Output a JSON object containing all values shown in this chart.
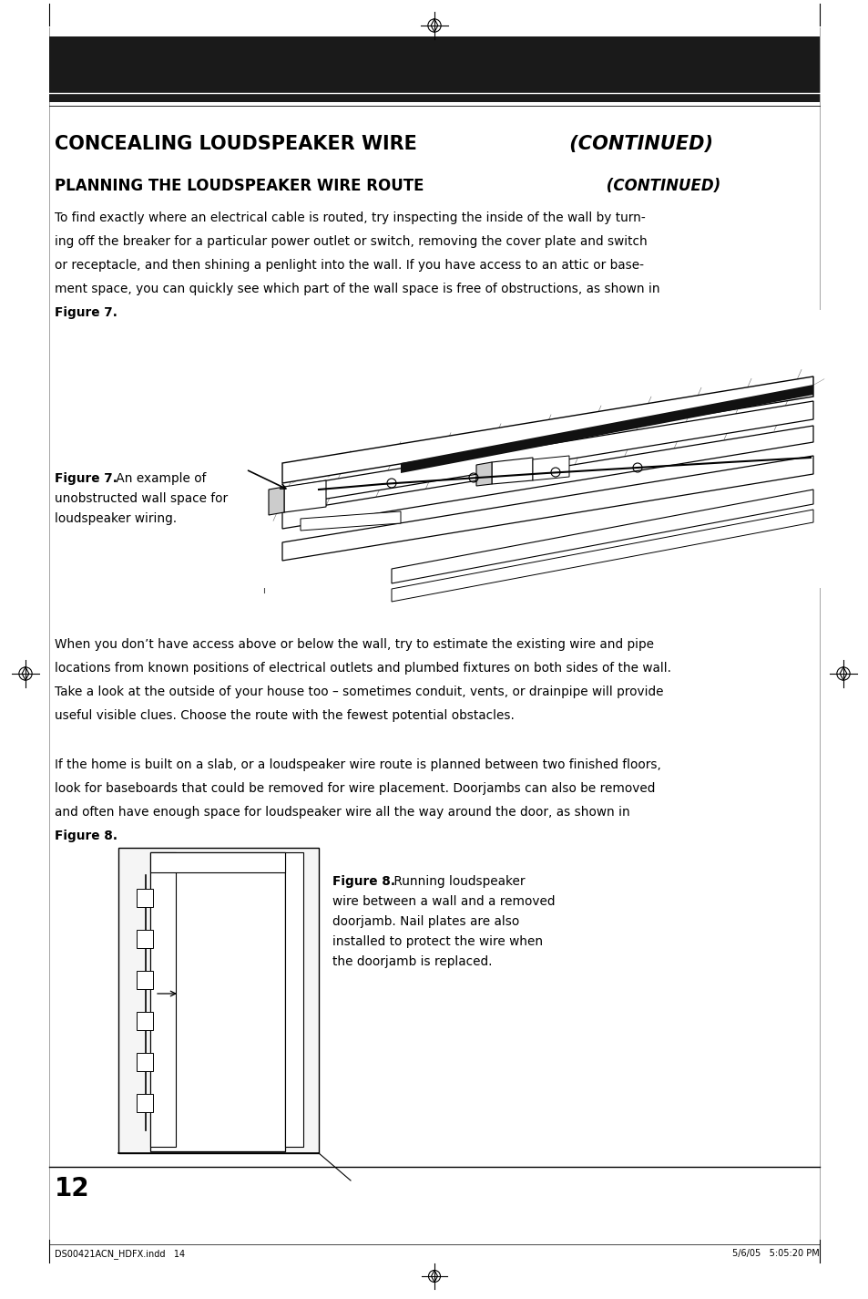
{
  "bg_color": "#ffffff",
  "header_bar_color": "#1a1a1a",
  "title_main": "CONCEALING LOUDSPEAKER WIRE",
  "title_continued": " (CONTINUED)",
  "subtitle": "PLANNING THE LOUDSPEAKER WIRE ROUTE",
  "subtitle_continued": " (CONTINUED)",
  "body1_lines": [
    "To find exactly where an electrical cable is routed, try inspecting the inside of the wall by turn-",
    "ing off the breaker for a particular power outlet or switch, removing the cover plate and switch",
    "or receptacle, and then shining a penlight into the wall. If you have access to an attic or base-",
    "ment space, you can quickly see which part of the wall space is free of obstructions, as shown in"
  ],
  "body2_lines": [
    "When you don’t have access above or below the wall, try to estimate the existing wire and pipe",
    "locations from known positions of electrical outlets and plumbed fixtures on both sides of the wall.",
    "Take a look at the outside of your house too – sometimes conduit, vents, or drainpipe will provide",
    "useful visible clues. Choose the route with the fewest potential obstacles."
  ],
  "body3_lines": [
    "If the home is built on a slab, or a loudspeaker wire route is planned between two finished floors,",
    "look for baseboards that could be removed for wire placement. Doorjambs can also be removed",
    "and often have enough space for loudspeaker wire all the way around the door, as shown in"
  ],
  "fig7_bold": "Figure 7.",
  "fig7_rest": " An example of",
  "fig7_line2": "unobstructed wall space for",
  "fig7_line3": "loudspeaker wiring.",
  "fig8_bold": "Figure 8.",
  "fig8_rest": " Running loudspeaker",
  "fig8_line2": "wire between a wall and a removed",
  "fig8_line3": "doorjamb. Nail plates are also",
  "fig8_line4": "installed to protect the wire when",
  "fig8_line5": "the doorjamb is replaced.",
  "page_number": "12",
  "footer_left": "DS00421ACN_HDFX.indd   14",
  "footer_right": "5/6/05   5:05:20 PM"
}
